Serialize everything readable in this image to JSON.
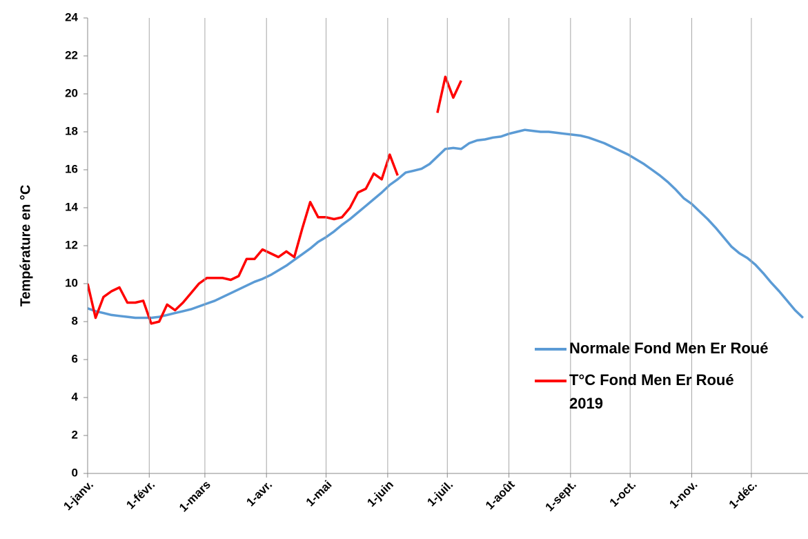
{
  "chart_data": {
    "type": "line",
    "ylabel": "Température en °C",
    "x": [
      1,
      5,
      9,
      13,
      17,
      21,
      25,
      29,
      33,
      37,
      41,
      45,
      49,
      53,
      57,
      61,
      65,
      69,
      73,
      77,
      81,
      85,
      89,
      93,
      97,
      101,
      105,
      109,
      113,
      117,
      121,
      125,
      129,
      133,
      137,
      141,
      145,
      149,
      153,
      157,
      161,
      165,
      169,
      173,
      177,
      181,
      185,
      189,
      193,
      197,
      201,
      205,
      209,
      213,
      217,
      221,
      225,
      229,
      233,
      237,
      241,
      245,
      249,
      253,
      257,
      261,
      265,
      269,
      273,
      277,
      281,
      285,
      289,
      293,
      297,
      301,
      305,
      309,
      313,
      317,
      321,
      325,
      329,
      333,
      337,
      341,
      345,
      349,
      353,
      357,
      361
    ],
    "series": [
      {
        "name": "Normale Fond Men Er Roué",
        "color": "#5b9bd5",
        "values": [
          8.7,
          8.55,
          8.45,
          8.35,
          8.3,
          8.25,
          8.2,
          8.2,
          8.2,
          8.25,
          8.35,
          8.45,
          8.55,
          8.65,
          8.8,
          8.95,
          9.1,
          9.3,
          9.5,
          9.7,
          9.9,
          10.1,
          10.25,
          10.45,
          10.7,
          10.95,
          11.25,
          11.55,
          11.85,
          12.2,
          12.45,
          12.75,
          13.1,
          13.4,
          13.75,
          14.1,
          14.45,
          14.8,
          15.2,
          15.5,
          15.85,
          15.95,
          16.05,
          16.3,
          16.7,
          17.1,
          17.15,
          17.1,
          17.4,
          17.55,
          17.6,
          17.7,
          17.75,
          17.9,
          18.0,
          18.1,
          18.05,
          18.0,
          18.0,
          17.95,
          17.9,
          17.85,
          17.8,
          17.7,
          17.55,
          17.4,
          17.2,
          17.0,
          16.8,
          16.55,
          16.3,
          16.0,
          15.7,
          15.35,
          14.95,
          14.5,
          14.2,
          13.8,
          13.4,
          12.95,
          12.45,
          11.95,
          11.6,
          11.35,
          11.0,
          10.55,
          10.05,
          9.6,
          9.1,
          8.6,
          8.2
        ]
      },
      {
        "name": "T°C Fond Men Er Roué 2019",
        "color": "#ff0000",
        "values": [
          10.0,
          8.2,
          9.3,
          9.6,
          9.8,
          9.0,
          9.0,
          9.1,
          7.9,
          8.0,
          8.9,
          8.6,
          9.0,
          9.5,
          10.0,
          10.3,
          10.3,
          10.3,
          10.2,
          10.4,
          11.3,
          11.3,
          11.8,
          11.6,
          11.4,
          11.7,
          11.4,
          12.9,
          14.3,
          13.5,
          13.5,
          13.4,
          13.5,
          14.0,
          14.8,
          15.0,
          15.8,
          15.5,
          16.8,
          15.7,
          null,
          null,
          null,
          null,
          19.0,
          20.9,
          19.8,
          20.7,
          null,
          null,
          null,
          null,
          null,
          null,
          null,
          null,
          null,
          null,
          null,
          null,
          null,
          null,
          null,
          null,
          null,
          null,
          null,
          null,
          null,
          null,
          null,
          null,
          null,
          null,
          null,
          null,
          null,
          null,
          null,
          null,
          null,
          null,
          null,
          null,
          null,
          null,
          null,
          null,
          null,
          null,
          null
        ]
      }
    ],
    "xlim": [
      1,
      364
    ],
    "xticks": [
      {
        "value": 1,
        "label": "1-janv."
      },
      {
        "value": 32,
        "label": "1-févr."
      },
      {
        "value": 60,
        "label": "1-mars"
      },
      {
        "value": 91,
        "label": "1-avr."
      },
      {
        "value": 121,
        "label": "1-mai"
      },
      {
        "value": 152,
        "label": "1-juin"
      },
      {
        "value": 182,
        "label": "1-juil."
      },
      {
        "value": 213,
        "label": "1-août"
      },
      {
        "value": 244,
        "label": "1-sept."
      },
      {
        "value": 274,
        "label": "1-oct."
      },
      {
        "value": 305,
        "label": "1-nov."
      },
      {
        "value": 335,
        "label": "1-déc."
      }
    ],
    "ylim": [
      0,
      24
    ],
    "yticks": [
      0,
      2,
      4,
      6,
      8,
      10,
      12,
      14,
      16,
      18,
      20,
      22,
      24
    ],
    "grid": "x",
    "legend": "lower right"
  }
}
